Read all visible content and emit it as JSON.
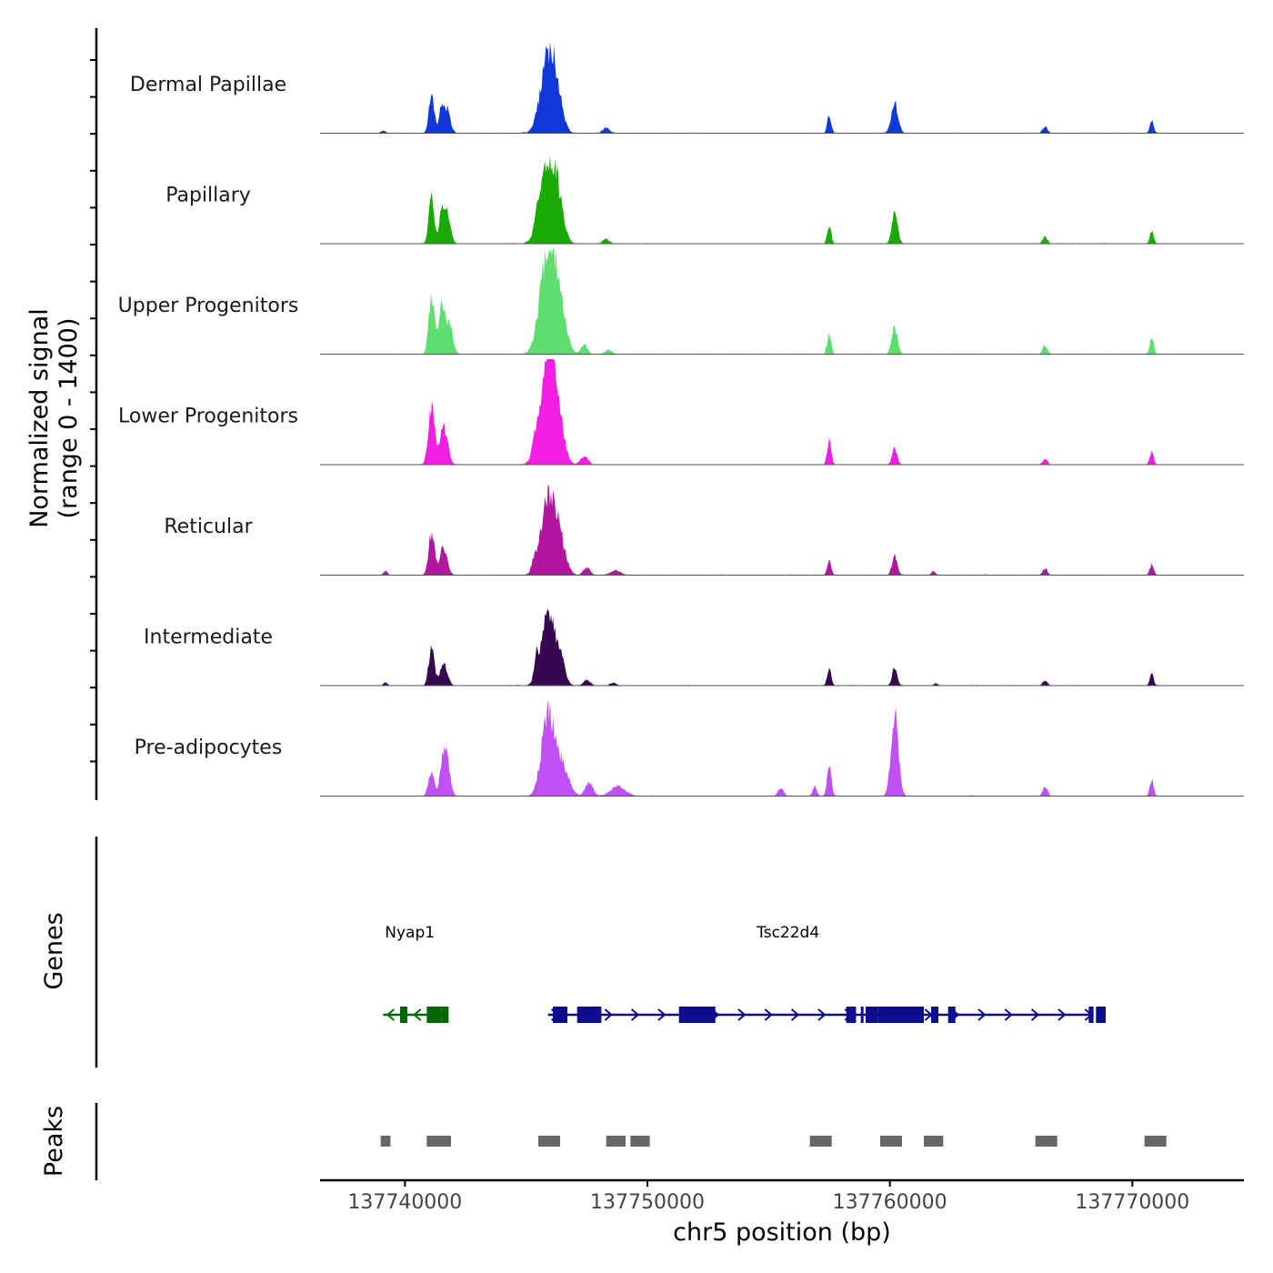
{
  "chart_data": {
    "type": "area",
    "title": "",
    "ylabel_line1": "Normalized signal",
    "ylabel_line2": "(range 0 - 1400)",
    "ylim": [
      0,
      1400
    ],
    "xlabel": "chr5 position (bp)",
    "xlim": [
      137736500,
      137774600
    ],
    "x_ticks": [
      137740000,
      137750000,
      137760000,
      137770000
    ],
    "x_tick_labels": [
      "137740000",
      "137750000",
      "137760000",
      "137770000"
    ],
    "genes_label": "Genes",
    "peaks_label": "Peaks",
    "tracks": [
      {
        "name": "Dermal Papillae",
        "color": "#1038d8",
        "peaks": [
          [
            137739100,
            35,
            100
          ],
          [
            137741100,
            510,
            110
          ],
          [
            137741700,
            340,
            150
          ],
          [
            137741500,
            260,
            80
          ],
          [
            137745900,
            1000,
            300
          ],
          [
            137746300,
            360,
            220
          ],
          [
            137748300,
            70,
            140
          ],
          [
            137757500,
            240,
            80
          ],
          [
            137760200,
            400,
            140
          ],
          [
            137766400,
            90,
            100
          ],
          [
            137770800,
            160,
            80
          ]
        ]
      },
      {
        "name": "Papillary",
        "color": "#1aaa04",
        "peaks": [
          [
            137741100,
            620,
            110
          ],
          [
            137741700,
            450,
            150
          ],
          [
            137741500,
            300,
            80
          ],
          [
            137745900,
            1000,
            320
          ],
          [
            137746300,
            400,
            240
          ],
          [
            137745400,
            160,
            70
          ],
          [
            137748300,
            60,
            140
          ],
          [
            137757500,
            250,
            80
          ],
          [
            137760200,
            420,
            120
          ],
          [
            137766400,
            90,
            100
          ],
          [
            137770800,
            160,
            80
          ]
        ]
      },
      {
        "name": "Upper Progenitors",
        "color": "#5ede6e",
        "peaks": [
          [
            137741100,
            740,
            120
          ],
          [
            137741500,
            560,
            120
          ],
          [
            137741800,
            420,
            160
          ],
          [
            137745900,
            1350,
            320
          ],
          [
            137746400,
            500,
            260
          ],
          [
            137747400,
            120,
            140
          ],
          [
            137748400,
            60,
            140
          ],
          [
            137757500,
            280,
            80
          ],
          [
            137760200,
            340,
            120
          ],
          [
            137766400,
            120,
            100
          ],
          [
            137770800,
            220,
            80
          ]
        ]
      },
      {
        "name": "Lower Progenitors",
        "color": "#f21ee2",
        "peaks": [
          [
            137741100,
            780,
            130
          ],
          [
            137741600,
            500,
            160
          ],
          [
            137745900,
            1300,
            320
          ],
          [
            137746300,
            480,
            240
          ],
          [
            137745300,
            140,
            80
          ],
          [
            137747400,
            110,
            160
          ],
          [
            137757500,
            340,
            80
          ],
          [
            137760200,
            220,
            100
          ],
          [
            137766400,
            80,
            100
          ],
          [
            137770800,
            160,
            80
          ]
        ]
      },
      {
        "name": "Reticular",
        "color": "#b0169e",
        "peaks": [
          [
            137739200,
            60,
            80
          ],
          [
            137741100,
            560,
            120
          ],
          [
            137741600,
            380,
            150
          ],
          [
            137745900,
            1000,
            300
          ],
          [
            137746400,
            380,
            240
          ],
          [
            137745300,
            120,
            80
          ],
          [
            137747500,
            100,
            140
          ],
          [
            137748700,
            60,
            200
          ],
          [
            137757500,
            200,
            80
          ],
          [
            137760200,
            260,
            110
          ],
          [
            137761800,
            60,
            80
          ],
          [
            137766400,
            80,
            100
          ],
          [
            137770800,
            140,
            80
          ]
        ]
      },
      {
        "name": "Intermediate",
        "color": "#36084f",
        "peaks": [
          [
            137739200,
            40,
            80
          ],
          [
            137741100,
            560,
            110
          ],
          [
            137741600,
            300,
            150
          ],
          [
            137745900,
            940,
            280
          ],
          [
            137745400,
            250,
            80
          ],
          [
            137746400,
            300,
            200
          ],
          [
            137747500,
            80,
            140
          ],
          [
            137748600,
            40,
            120
          ],
          [
            137757500,
            250,
            80
          ],
          [
            137760200,
            250,
            100
          ],
          [
            137761900,
            30,
            80
          ],
          [
            137766400,
            70,
            100
          ],
          [
            137770800,
            150,
            80
          ]
        ]
      },
      {
        "name": "Pre-adipocytes",
        "color": "#bf50f4",
        "peaks": [
          [
            137741100,
            360,
            120
          ],
          [
            137741700,
            600,
            140
          ],
          [
            137741500,
            220,
            80
          ],
          [
            137745900,
            1100,
            260
          ],
          [
            137746500,
            400,
            260
          ],
          [
            137747600,
            180,
            160
          ],
          [
            137748800,
            130,
            300
          ],
          [
            137755500,
            100,
            120
          ],
          [
            137757500,
            400,
            90
          ],
          [
            137756900,
            140,
            80
          ],
          [
            137760200,
            1130,
            150
          ],
          [
            137766400,
            120,
            100
          ],
          [
            137770800,
            220,
            80
          ]
        ]
      }
    ],
    "genes": [
      {
        "name": "Nyap1",
        "label_x": 137740200,
        "color": "#046604",
        "strand": "-",
        "start": 137739100,
        "end": 137741800,
        "exons": [
          [
            137739800,
            137740100
          ],
          [
            137740900,
            137741500
          ],
          [
            137741500,
            137741800
          ]
        ]
      },
      {
        "name": "Tsc22d4",
        "label_x": 137755800,
        "color": "#0e0e8c",
        "strand": "+",
        "start": 137745900,
        "end": 137768400,
        "exons": [
          [
            137746100,
            137746700
          ],
          [
            137747100,
            137748100
          ],
          [
            137751300,
            137752800
          ],
          [
            137758200,
            137758600
          ],
          [
            137758800,
            137758900
          ],
          [
            137759000,
            137759500
          ],
          [
            137759500,
            137761400
          ],
          [
            137761700,
            137762000
          ],
          [
            137762400,
            137762700
          ],
          [
            137768200,
            137768400
          ],
          [
            137768500,
            137768900
          ]
        ]
      }
    ],
    "peaks": [
      [
        137739000,
        137739400
      ],
      [
        137740900,
        137741900
      ],
      [
        137745500,
        137746400
      ],
      [
        137748300,
        137749100
      ],
      [
        137749300,
        137750100
      ],
      [
        137756700,
        137757600
      ],
      [
        137759600,
        137760500
      ],
      [
        137761400,
        137762200
      ],
      [
        137766000,
        137766900
      ],
      [
        137770500,
        137771400
      ]
    ]
  }
}
